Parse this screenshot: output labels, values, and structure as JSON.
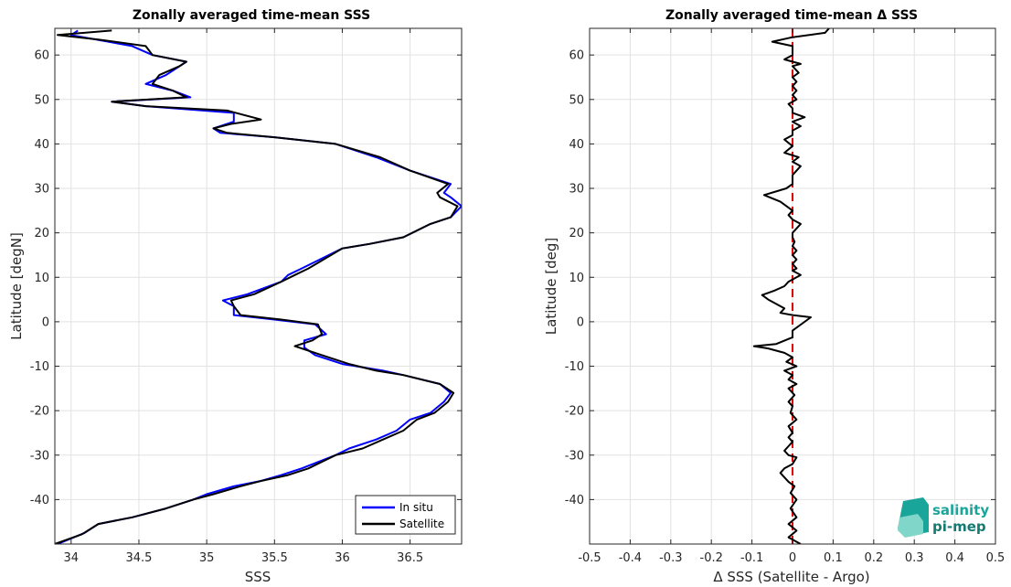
{
  "chart_data": [
    {
      "type": "line",
      "title": "Zonally averaged time-mean SSS",
      "xlabel": "SSS",
      "ylabel": "Latitude [degN]",
      "xlim": [
        33.88,
        36.88
      ],
      "ylim": [
        -50,
        66
      ],
      "xticks": [
        "34",
        "34.5",
        "35",
        "35.5",
        "36",
        "36.5"
      ],
      "xtick_values": [
        34,
        34.5,
        35,
        35.5,
        36,
        36.5
      ],
      "yticks": [
        "-40",
        "-30",
        "-20",
        "-10",
        "0",
        "10",
        "20",
        "30",
        "40",
        "50",
        "60"
      ],
      "ytick_values": [
        -40,
        -30,
        -20,
        -10,
        0,
        10,
        20,
        30,
        40,
        50,
        60
      ],
      "grid": true,
      "legend_position": "bottom-right",
      "series": [
        {
          "name": "In situ",
          "color": "#0000ff",
          "points": [
            [
              33.9,
              -50
            ],
            [
              34.1,
              -47.5
            ],
            [
              34.2,
              -45.5
            ],
            [
              34.45,
              -44
            ],
            [
              34.7,
              -42
            ],
            [
              34.9,
              -40
            ],
            [
              35.0,
              -38.8
            ],
            [
              35.2,
              -37
            ],
            [
              35.4,
              -35.8
            ],
            [
              35.55,
              -34.5
            ],
            [
              35.7,
              -33
            ],
            [
              35.95,
              -30
            ],
            [
              36.05,
              -28.5
            ],
            [
              36.25,
              -26.5
            ],
            [
              36.4,
              -24.5
            ],
            [
              36.5,
              -22
            ],
            [
              36.65,
              -20.5
            ],
            [
              36.75,
              -18
            ],
            [
              36.8,
              -16
            ],
            [
              36.72,
              -14
            ],
            [
              36.45,
              -12
            ],
            [
              36.3,
              -11
            ],
            [
              36.0,
              -9.5
            ],
            [
              35.8,
              -7.5
            ],
            [
              35.72,
              -5.8
            ],
            [
              35.72,
              -4.2
            ],
            [
              35.88,
              -2.8
            ],
            [
              35.8,
              -0.6
            ],
            [
              35.5,
              0.5
            ],
            [
              35.2,
              1.5
            ],
            [
              35.2,
              3.5
            ],
            [
              35.12,
              4.8
            ],
            [
              35.3,
              6.2
            ],
            [
              35.55,
              9
            ],
            [
              35.6,
              10.5
            ],
            [
              35.7,
              12
            ],
            [
              36.0,
              16.5
            ],
            [
              36.2,
              17.5
            ],
            [
              36.45,
              19
            ],
            [
              36.65,
              22
            ],
            [
              36.8,
              23.5
            ],
            [
              36.88,
              26
            ],
            [
              36.8,
              28
            ],
            [
              36.75,
              29
            ],
            [
              36.8,
              31
            ],
            [
              36.5,
              34
            ],
            [
              36.25,
              37
            ],
            [
              35.95,
              40
            ],
            [
              35.5,
              41.5
            ],
            [
              35.1,
              42.5
            ],
            [
              35.05,
              43.5
            ],
            [
              35.2,
              45
            ],
            [
              35.2,
              47
            ],
            [
              34.55,
              48.5
            ],
            [
              34.3,
              49.5
            ],
            [
              34.88,
              50.5
            ],
            [
              34.75,
              52
            ],
            [
              34.55,
              53.5
            ],
            [
              34.7,
              55.5
            ],
            [
              34.85,
              58.5
            ],
            [
              34.6,
              60
            ],
            [
              34.45,
              62
            ],
            [
              34.0,
              64.5
            ],
            [
              34.05,
              65.5
            ]
          ]
        },
        {
          "name": "Satellite",
          "color": "#000000",
          "points": [
            [
              33.88,
              -50
            ],
            [
              34.08,
              -47.8
            ],
            [
              34.2,
              -45.5
            ],
            [
              34.45,
              -44
            ],
            [
              34.7,
              -42
            ],
            [
              34.9,
              -40
            ],
            [
              35.05,
              -38.8
            ],
            [
              35.25,
              -37
            ],
            [
              35.4,
              -35.8
            ],
            [
              35.6,
              -34.5
            ],
            [
              35.75,
              -33
            ],
            [
              35.95,
              -30
            ],
            [
              36.15,
              -28.5
            ],
            [
              36.3,
              -26.5
            ],
            [
              36.45,
              -24.5
            ],
            [
              36.55,
              -22
            ],
            [
              36.68,
              -20.5
            ],
            [
              36.78,
              -18
            ],
            [
              36.82,
              -16
            ],
            [
              36.72,
              -14
            ],
            [
              36.45,
              -12
            ],
            [
              36.25,
              -11
            ],
            [
              36.05,
              -9.5
            ],
            [
              35.85,
              -7.5
            ],
            [
              35.65,
              -5.5
            ],
            [
              35.78,
              -4.2
            ],
            [
              35.85,
              -2.8
            ],
            [
              35.82,
              -0.6
            ],
            [
              35.55,
              0.5
            ],
            [
              35.25,
              1.5
            ],
            [
              35.2,
              3.5
            ],
            [
              35.18,
              4.8
            ],
            [
              35.35,
              6.2
            ],
            [
              35.55,
              9
            ],
            [
              35.65,
              10.5
            ],
            [
              35.75,
              12
            ],
            [
              36.0,
              16.5
            ],
            [
              36.2,
              17.5
            ],
            [
              36.45,
              19
            ],
            [
              36.65,
              22
            ],
            [
              36.8,
              23.5
            ],
            [
              36.85,
              26
            ],
            [
              36.72,
              28
            ],
            [
              36.7,
              29
            ],
            [
              36.78,
              31
            ],
            [
              36.5,
              34
            ],
            [
              36.28,
              37
            ],
            [
              35.95,
              40
            ],
            [
              35.5,
              41.5
            ],
            [
              35.15,
              42.5
            ],
            [
              35.05,
              43.5
            ],
            [
              35.18,
              44.5
            ],
            [
              35.4,
              45.5
            ],
            [
              35.15,
              47.5
            ],
            [
              34.55,
              48.5
            ],
            [
              34.3,
              49.5
            ],
            [
              34.85,
              50.5
            ],
            [
              34.75,
              52
            ],
            [
              34.6,
              53.5
            ],
            [
              34.65,
              55.5
            ],
            [
              34.8,
              57.5
            ],
            [
              34.85,
              58.5
            ],
            [
              34.6,
              60
            ],
            [
              34.55,
              62
            ],
            [
              34.2,
              63.5
            ],
            [
              33.9,
              64.5
            ],
            [
              34.3,
              65.5
            ]
          ]
        }
      ]
    },
    {
      "type": "line",
      "title": "Zonally averaged time-mean Δ SSS",
      "xlabel": "Δ SSS (Satellite - Argo)",
      "ylabel": "Latitude [deg]",
      "xlim": [
        -0.5,
        0.5
      ],
      "ylim": [
        -50,
        66
      ],
      "xticks": [
        "-0.5",
        "-0.4",
        "-0.3",
        "-0.2",
        "-0.1",
        "0",
        "0.1",
        "0.2",
        "0.3",
        "0.4",
        "0.5"
      ],
      "xtick_values": [
        -0.5,
        -0.4,
        -0.3,
        -0.2,
        -0.1,
        0,
        0.1,
        0.2,
        0.3,
        0.4,
        0.5
      ],
      "yticks": [
        "-40",
        "-30",
        "-20",
        "-10",
        "0",
        "10",
        "20",
        "30",
        "40",
        "50",
        "60"
      ],
      "ytick_values": [
        -40,
        -30,
        -20,
        -10,
        0,
        10,
        20,
        30,
        40,
        50,
        60
      ],
      "grid": true,
      "reference_line": {
        "x": 0,
        "color": "#e00000",
        "style": "dashed"
      },
      "series": [
        {
          "name": "",
          "color": "#000000",
          "points": [
            [
              0.02,
              -50
            ],
            [
              -0.01,
              -48.5
            ],
            [
              0.01,
              -47
            ],
            [
              -0.01,
              -45.5
            ],
            [
              0.01,
              -44
            ],
            [
              -0.005,
              -42
            ],
            [
              0.01,
              -40
            ],
            [
              -0.005,
              -38.5
            ],
            [
              0.005,
              -37
            ],
            [
              -0.01,
              -36
            ],
            [
              -0.02,
              -35
            ],
            [
              -0.03,
              -34
            ],
            [
              -0.02,
              -33
            ],
            [
              0.0,
              -32
            ],
            [
              0.01,
              -30.5
            ],
            [
              -0.01,
              -30
            ],
            [
              -0.02,
              -29
            ],
            [
              -0.01,
              -28
            ],
            [
              0.0,
              -27
            ],
            [
              -0.01,
              -26
            ],
            [
              0.0,
              -25
            ],
            [
              -0.01,
              -23.5
            ],
            [
              0.01,
              -22
            ],
            [
              -0.005,
              -20.5
            ],
            [
              0.0,
              -19
            ],
            [
              -0.01,
              -18
            ],
            [
              0.005,
              -16.5
            ],
            [
              -0.01,
              -15
            ],
            [
              0.01,
              -14
            ],
            [
              -0.01,
              -13
            ],
            [
              0.0,
              -12
            ],
            [
              -0.02,
              -11
            ],
            [
              0.01,
              -10
            ],
            [
              -0.015,
              -9
            ],
            [
              0.0,
              -8
            ],
            [
              -0.02,
              -7
            ],
            [
              -0.06,
              -6
            ],
            [
              -0.095,
              -5.5
            ],
            [
              -0.04,
              -5
            ],
            [
              0.0,
              -3.5
            ],
            [
              0.0,
              -2
            ],
            [
              0.045,
              1
            ],
            [
              0.0,
              1.5
            ],
            [
              -0.03,
              2
            ],
            [
              -0.02,
              3
            ],
            [
              -0.06,
              5
            ],
            [
              -0.075,
              6
            ],
            [
              -0.045,
              7
            ],
            [
              -0.02,
              8
            ],
            [
              -0.01,
              9
            ],
            [
              0.02,
              10.5
            ],
            [
              0.0,
              11.5
            ],
            [
              0.01,
              12
            ],
            [
              0.0,
              13
            ],
            [
              0.01,
              14
            ],
            [
              0.0,
              15
            ],
            [
              0.01,
              16
            ],
            [
              0.0,
              17
            ],
            [
              0.005,
              18
            ],
            [
              0.0,
              19
            ],
            [
              0.0,
              20
            ],
            [
              0.02,
              22
            ],
            [
              0.0,
              23
            ],
            [
              -0.01,
              24
            ],
            [
              0.0,
              25
            ],
            [
              -0.03,
              27
            ],
            [
              -0.07,
              28.5
            ],
            [
              -0.015,
              30
            ],
            [
              0.0,
              31
            ],
            [
              0.0,
              33
            ],
            [
              0.02,
              35
            ],
            [
              0.0,
              36
            ],
            [
              0.015,
              37
            ],
            [
              -0.02,
              38
            ],
            [
              0.0,
              39.5
            ],
            [
              -0.02,
              41
            ],
            [
              0.0,
              42
            ],
            [
              0.0,
              43
            ],
            [
              0.02,
              44
            ],
            [
              0.0,
              45
            ],
            [
              0.03,
              46
            ],
            [
              0.0,
              47
            ],
            [
              0.0,
              48
            ],
            [
              -0.01,
              49
            ],
            [
              0.01,
              50
            ],
            [
              0.0,
              51
            ],
            [
              0.01,
              52
            ],
            [
              0.0,
              53
            ],
            [
              0.01,
              54
            ],
            [
              0.0,
              55
            ],
            [
              0.015,
              56
            ],
            [
              0.0,
              57.5
            ],
            [
              0.02,
              58
            ],
            [
              -0.02,
              59
            ],
            [
              0.0,
              60
            ],
            [
              0.0,
              62
            ],
            [
              -0.05,
              63
            ],
            [
              0.0,
              64
            ],
            [
              0.08,
              65
            ],
            [
              0.09,
              66
            ]
          ]
        }
      ]
    }
  ],
  "legend": {
    "entries": [
      "In situ",
      "Satellite"
    ]
  },
  "logo": {
    "line1": "salinity",
    "line2": "pi-mep"
  }
}
